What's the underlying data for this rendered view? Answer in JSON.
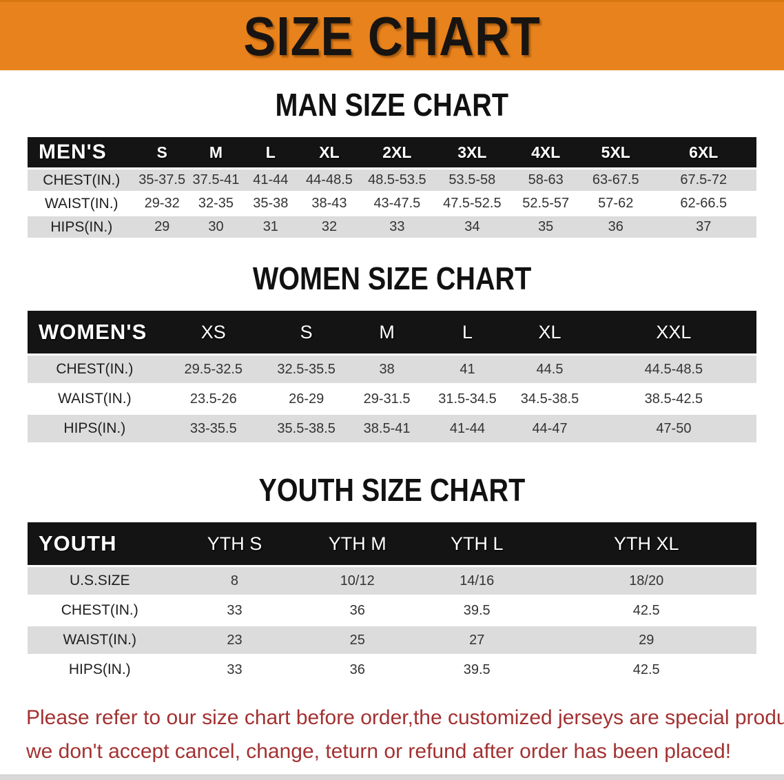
{
  "banner": {
    "title": "SIZE CHART",
    "bg_color": "#E8821C"
  },
  "colors": {
    "banner_orange": "#E8821C",
    "table_header_black": "#141414",
    "row_shaded_gray": "#DCDCDC",
    "disclaimer_red": "#A33131"
  },
  "sections": [
    {
      "heading": "MAN SIZE CHART",
      "table": {
        "header_label": "MEN'S",
        "columns": [
          "S",
          "M",
          "L",
          "XL",
          "2XL",
          "3XL",
          "4XL",
          "5XL",
          "6XL"
        ],
        "rows": [
          {
            "label": "CHEST(IN.)",
            "values": [
              "35-37.5",
              "37.5-41",
              "41-44",
              "44-48.5",
              "48.5-53.5",
              "53.5-58",
              "58-63",
              "63-67.5",
              "67.5-72"
            ]
          },
          {
            "label": "WAIST(IN.)",
            "values": [
              "29-32",
              "32-35",
              "35-38",
              "38-43",
              "43-47.5",
              "47.5-52.5",
              "52.5-57",
              "57-62",
              "62-66.5"
            ]
          },
          {
            "label": "HIPS(IN.)",
            "values": [
              "29",
              "30",
              "31",
              "32",
              "33",
              "34",
              "35",
              "36",
              "37"
            ]
          }
        ]
      }
    },
    {
      "heading": "WOMEN SIZE CHART",
      "table": {
        "header_label": "WOMEN'S",
        "columns": [
          "XS",
          "S",
          "M",
          "L",
          "XL",
          "XXL"
        ],
        "rows": [
          {
            "label": "CHEST(IN.)",
            "values": [
              "29.5-32.5",
              "32.5-35.5",
              "38",
              "41",
              "44.5",
              "44.5-48.5"
            ]
          },
          {
            "label": "WAIST(IN.)",
            "values": [
              "23.5-26",
              "26-29",
              "29-31.5",
              "31.5-34.5",
              "34.5-38.5",
              "38.5-42.5"
            ]
          },
          {
            "label": "HIPS(IN.)",
            "values": [
              "33-35.5",
              "35.5-38.5",
              "38.5-41",
              "41-44",
              "44-47",
              "47-50"
            ]
          }
        ]
      }
    },
    {
      "heading": "YOUTH SIZE CHART",
      "table": {
        "header_label": "YOUTH",
        "columns": [
          "YTH S",
          "YTH M",
          "YTH L",
          "YTH XL"
        ],
        "rows": [
          {
            "label": "U.S.SIZE",
            "values": [
              "8",
              "10/12",
              "14/16",
              "18/20"
            ]
          },
          {
            "label": "CHEST(IN.)",
            "values": [
              "33",
              "36",
              "39.5",
              "42.5"
            ]
          },
          {
            "label": "WAIST(IN.)",
            "values": [
              "23",
              "25",
              "27",
              "29"
            ]
          },
          {
            "label": "HIPS(IN.)",
            "values": [
              "33",
              "36",
              "39.5",
              "42.5"
            ]
          }
        ]
      }
    }
  ],
  "disclaimer": {
    "line1": "Please refer to our size chart before order,the customized jerseys are special products,",
    "line2": "we don't accept cancel, change, teturn or refund after order has been placed!"
  }
}
